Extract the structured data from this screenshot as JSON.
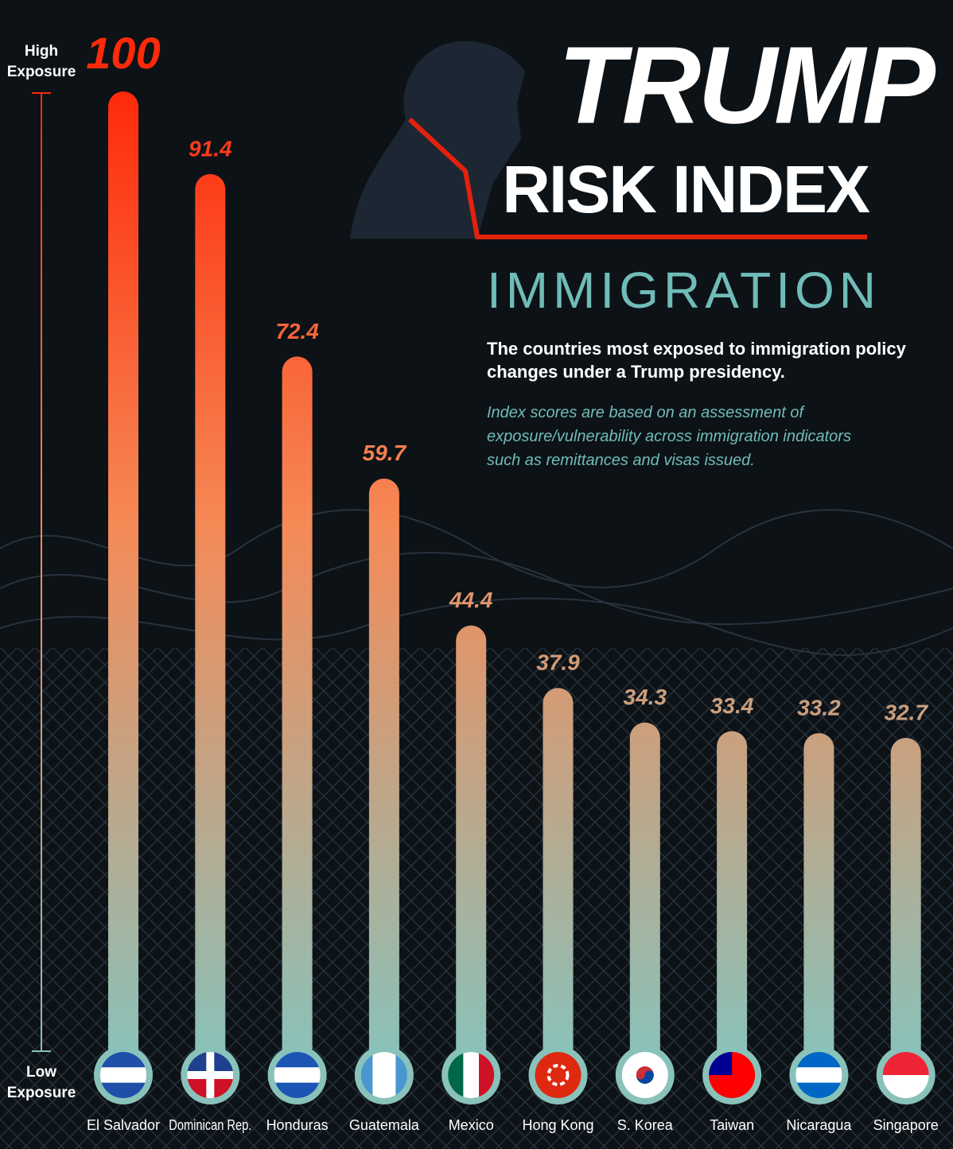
{
  "chart_data": {
    "type": "bar",
    "title_lines": [
      "TRUMP",
      "RISK INDEX"
    ],
    "subtitle": "IMMIGRATION",
    "description": "The countries most exposed to immigration policy changes under a Trump presidency.",
    "note": "Index scores are based on an assessment of exposure/vulnerability across immigration indicators such as remittances and visas issued.",
    "high_label": "High Exposure",
    "low_label": "Low Exposure",
    "categories": [
      "El Salvador",
      "Dominican Rep.",
      "Honduras",
      "Guatemala",
      "Mexico",
      "Hong Kong",
      "S. Korea",
      "Taiwan",
      "Nicaragua",
      "Singapore"
    ],
    "values": [
      100,
      91.4,
      72.4,
      59.7,
      44.4,
      37.9,
      34.3,
      33.4,
      33.2,
      32.7
    ],
    "colors": [
      "#ff2a0a",
      "#f58a57",
      "#89c2ba"
    ],
    "ylim": [
      0,
      100
    ]
  }
}
